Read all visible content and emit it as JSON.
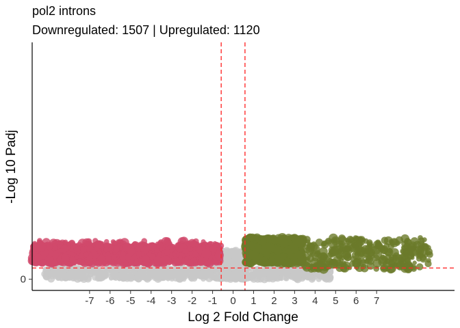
{
  "chart_data": {
    "type": "scatter",
    "title": "pol2 introns",
    "subtitle": "Downregulated: 1507 | Upregulated: 1120",
    "xlabel": "Log 2 Fold Change",
    "ylabel": "-Log 10 Padj",
    "x_ticks": [
      "-7",
      "-6",
      "-5",
      "-4",
      "-3",
      "-2",
      "-1",
      "0",
      "1",
      "2",
      "3",
      "4",
      "5",
      "6",
      "7"
    ],
    "y_ticks": [
      "0"
    ],
    "xlim": [
      -9.8,
      10.8
    ],
    "ylim": [
      -0.35,
      7.4
    ],
    "grid": false,
    "legend": "none",
    "threshold_lines": {
      "vertical_x": [
        -0.58,
        0.58
      ],
      "horizontal_y": 0.35,
      "color": "#ff2b2b",
      "style": "dashed"
    },
    "series": [
      {
        "group": "not-significant",
        "color": "#c8c8c8",
        "x_range": [
          -9.2,
          4.8
        ],
        "y_range": [
          0.0,
          0.9
        ]
      },
      {
        "group": "downregulated",
        "color": "#d1496b",
        "count": 1507,
        "x_range": [
          -9.8,
          -0.6
        ],
        "y_range": [
          0.5,
          1.3
        ]
      },
      {
        "group": "upregulated",
        "color": "#6b7a2a",
        "count": 1120,
        "x_range": [
          0.6,
          9.6
        ],
        "y_range": [
          0.3,
          1.35
        ]
      }
    ]
  }
}
